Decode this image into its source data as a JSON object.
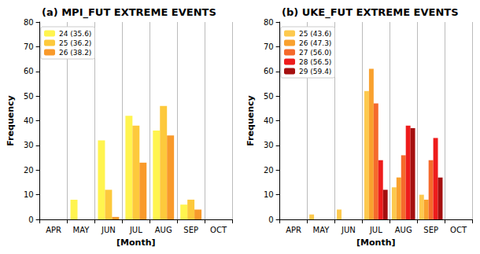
{
  "chart_data": [
    {
      "type": "bar",
      "title": "(a) MPI_FUT EXTREME EVENTS",
      "x_label": "[Month]",
      "y_label": "Frequency",
      "categories": [
        "APR",
        "MAY",
        "JUN",
        "JUL",
        "AUG",
        "SEP",
        "OCT"
      ],
      "series": [
        {
          "name": "24 (35.6)",
          "color": "#fff44f",
          "values": [
            0,
            8,
            32,
            42,
            36,
            6,
            0
          ]
        },
        {
          "name": "25 (36.2)",
          "color": "#fdc93c",
          "values": [
            0,
            0,
            12,
            38,
            46,
            8,
            0
          ]
        },
        {
          "name": "26 (38.2)",
          "color": "#f99a2b",
          "values": [
            0,
            0,
            1,
            23,
            34,
            4,
            0
          ]
        }
      ],
      "ylim": [
        0,
        80
      ],
      "yticks": [
        0,
        10,
        20,
        30,
        40,
        50,
        60,
        70,
        80
      ],
      "grid": true,
      "legend": "upper left"
    },
    {
      "type": "bar",
      "title": "(b) UKE_FUT EXTREME EVENTS",
      "x_label": "[Month]",
      "y_label": "Frequency",
      "categories": [
        "APR",
        "MAY",
        "JUN",
        "JUL",
        "AUG",
        "SEP",
        "OCT"
      ],
      "series": [
        {
          "name": "25 (43.6)",
          "color": "#fdc94e",
          "values": [
            0,
            2,
            4,
            52,
            13,
            10,
            0
          ]
        },
        {
          "name": "26 (47.3)",
          "color": "#f9a12e",
          "values": [
            0,
            0,
            0,
            61,
            17,
            8,
            0
          ]
        },
        {
          "name": "27 (56.0)",
          "color": "#f56a2c",
          "values": [
            0,
            0,
            0,
            47,
            26,
            24,
            0
          ]
        },
        {
          "name": "28 (56.5)",
          "color": "#ee1c1c",
          "values": [
            0,
            0,
            0,
            24,
            38,
            33,
            0
          ]
        },
        {
          "name": "29 (59.4)",
          "color": "#a50f0f",
          "values": [
            0,
            0,
            0,
            12,
            37,
            17,
            0
          ]
        }
      ],
      "ylim": [
        0,
        80
      ],
      "yticks": [
        0,
        10,
        20,
        30,
        40,
        50,
        60,
        70,
        80
      ],
      "grid": true,
      "legend": "upper left"
    }
  ]
}
